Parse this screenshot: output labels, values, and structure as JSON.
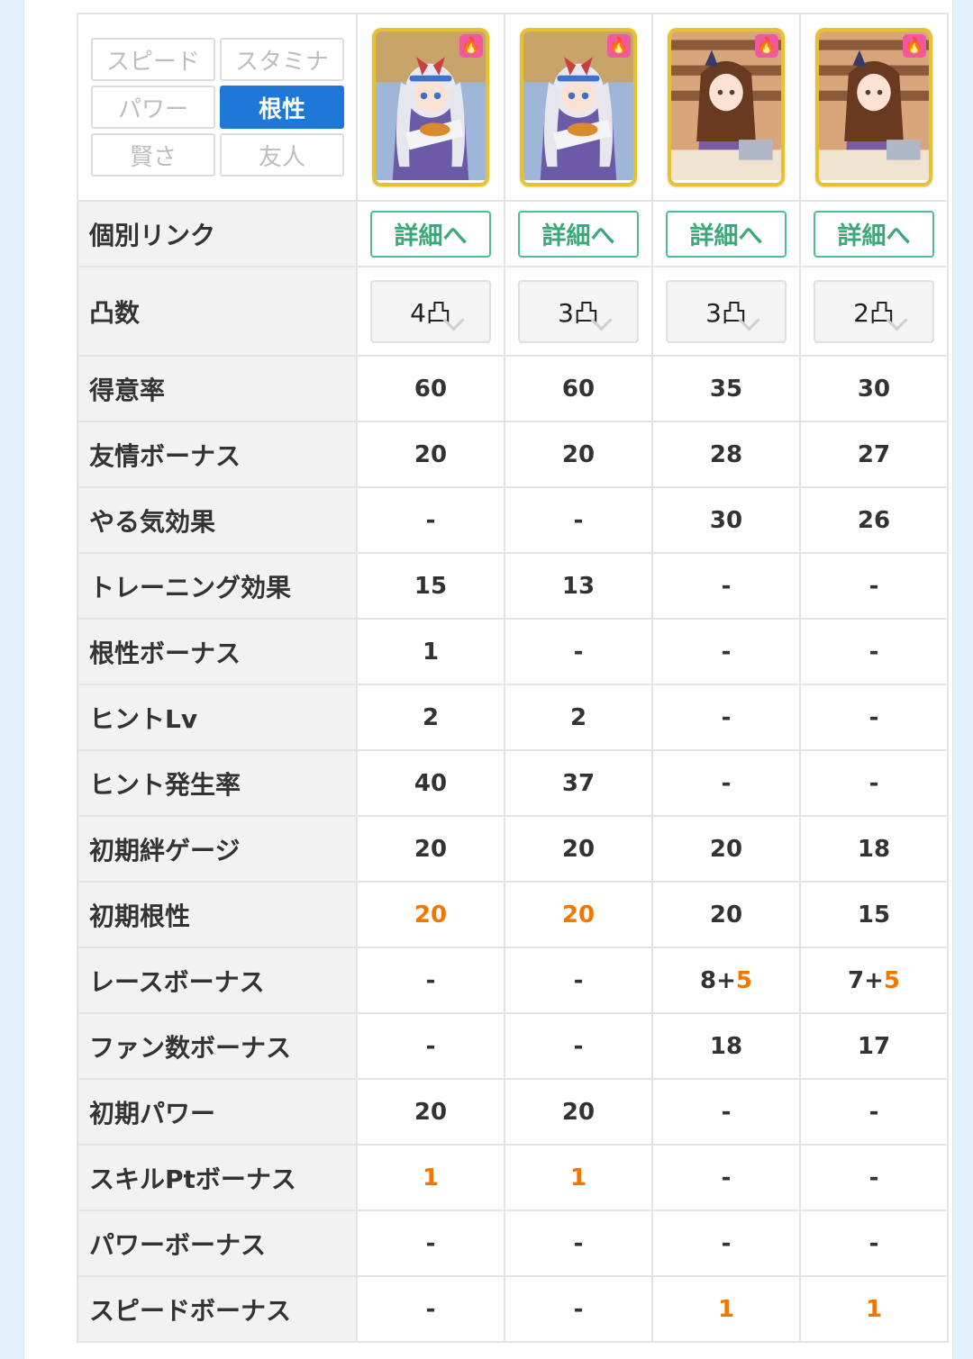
{
  "filters": [
    {
      "label": "スピード",
      "active": false
    },
    {
      "label": "スタミナ",
      "active": false
    },
    {
      "label": "パワー",
      "active": false
    },
    {
      "label": "根性",
      "active": true
    },
    {
      "label": "賢さ",
      "active": false
    },
    {
      "label": "友人",
      "active": false
    }
  ],
  "cards": [
    {
      "art": "silver-hair-girl",
      "limit_break": "4凸"
    },
    {
      "art": "silver-hair-girl",
      "limit_break": "3凸"
    },
    {
      "art": "brown-hair-girl-library",
      "limit_break": "3凸"
    },
    {
      "art": "brown-hair-girl-library",
      "limit_break": "2凸"
    }
  ],
  "row_labels": {
    "link": "個別リンク",
    "limit_break": "凸数"
  },
  "detail_button_label": "詳細へ",
  "stats": [
    {
      "label": "得意率",
      "values": [
        "60",
        "60",
        "35",
        "30"
      ]
    },
    {
      "label": "友情ボーナス",
      "values": [
        "20",
        "20",
        "28",
        "27"
      ]
    },
    {
      "label": "やる気効果",
      "values": [
        "-",
        "-",
        "30",
        "26"
      ]
    },
    {
      "label": "トレーニング効果",
      "values": [
        "15",
        "13",
        "-",
        "-"
      ]
    },
    {
      "label": "根性ボーナス",
      "values": [
        "1",
        "-",
        "-",
        "-"
      ]
    },
    {
      "label": "ヒントLv",
      "values": [
        "2",
        "2",
        "-",
        "-"
      ]
    },
    {
      "label": "ヒント発生率",
      "values": [
        "40",
        "37",
        "-",
        "-"
      ]
    },
    {
      "label": "初期絆ゲージ",
      "values": [
        "20",
        "20",
        "20",
        "18"
      ]
    },
    {
      "label": "初期根性",
      "values": [
        "20",
        "20",
        "20",
        "15"
      ],
      "highlight": [
        0,
        1
      ]
    },
    {
      "label": "レースボーナス",
      "values": [
        "-",
        "-",
        "8+",
        "7+"
      ],
      "suffix": [
        "",
        "",
        "5",
        "5"
      ]
    },
    {
      "label": "ファン数ボーナス",
      "values": [
        "-",
        "-",
        "18",
        "17"
      ]
    },
    {
      "label": "初期パワー",
      "values": [
        "20",
        "20",
        "-",
        "-"
      ]
    },
    {
      "label": "スキルPtボーナス",
      "values": [
        "1",
        "1",
        "-",
        "-"
      ],
      "highlight": [
        0,
        1
      ]
    },
    {
      "label": "パワーボーナス",
      "values": [
        "-",
        "-",
        "-",
        "-"
      ]
    },
    {
      "label": "スピードボーナス",
      "values": [
        "-",
        "-",
        "1",
        "1"
      ],
      "highlight": [
        2,
        3
      ]
    }
  ],
  "colors": {
    "accent": "#1e78d7",
    "highlight": "#f07800",
    "detail_border": "#4cbf93",
    "card_border": "#e8c22c",
    "flame_badge": "#f0599c"
  },
  "icons": {
    "badge": "flame-icon",
    "select": "chevron-down-icon"
  }
}
